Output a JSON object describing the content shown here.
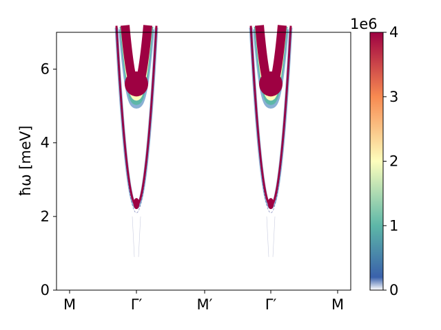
{
  "chart_data": {
    "type": "heatmap",
    "title": "",
    "xlabel": "",
    "ylabel": "ħω [meV]",
    "ylim": [
      0,
      7
    ],
    "x_ticks": [
      "M",
      "Γ′",
      "M′",
      "Γ′",
      "M"
    ],
    "y_ticks": [
      "0",
      "2",
      "4",
      "6"
    ],
    "grid": false,
    "colorbar": {
      "label": "",
      "offset_text": "1e6",
      "range": [
        0,
        4
      ],
      "ticks": [
        "0",
        "1",
        "2",
        "3",
        "4"
      ],
      "colormap": "Spectral_r",
      "colors": [
        "#ffffff",
        "#3a61ab",
        "#5db7a8",
        "#fdfebc",
        "#f88a51",
        "#9e0142"
      ]
    },
    "branches": [
      {
        "name": "lower",
        "gamma_energy": 2.3,
        "intensity": "high",
        "color": "#9e0142",
        "edge_color": "#3a7bb8"
      },
      {
        "name": "upper",
        "gamma_energy": 5.2,
        "band_top_at_gamma": 5.9,
        "intensity": "saturated",
        "color": "#9e0142",
        "edge_colors": [
          "#3a7bb8",
          "#5db7a8",
          "#fdfebc",
          "#f88a51"
        ]
      }
    ],
    "gamma_positions": [
      1,
      3
    ],
    "faint_tail_min_energy": 0.9
  }
}
